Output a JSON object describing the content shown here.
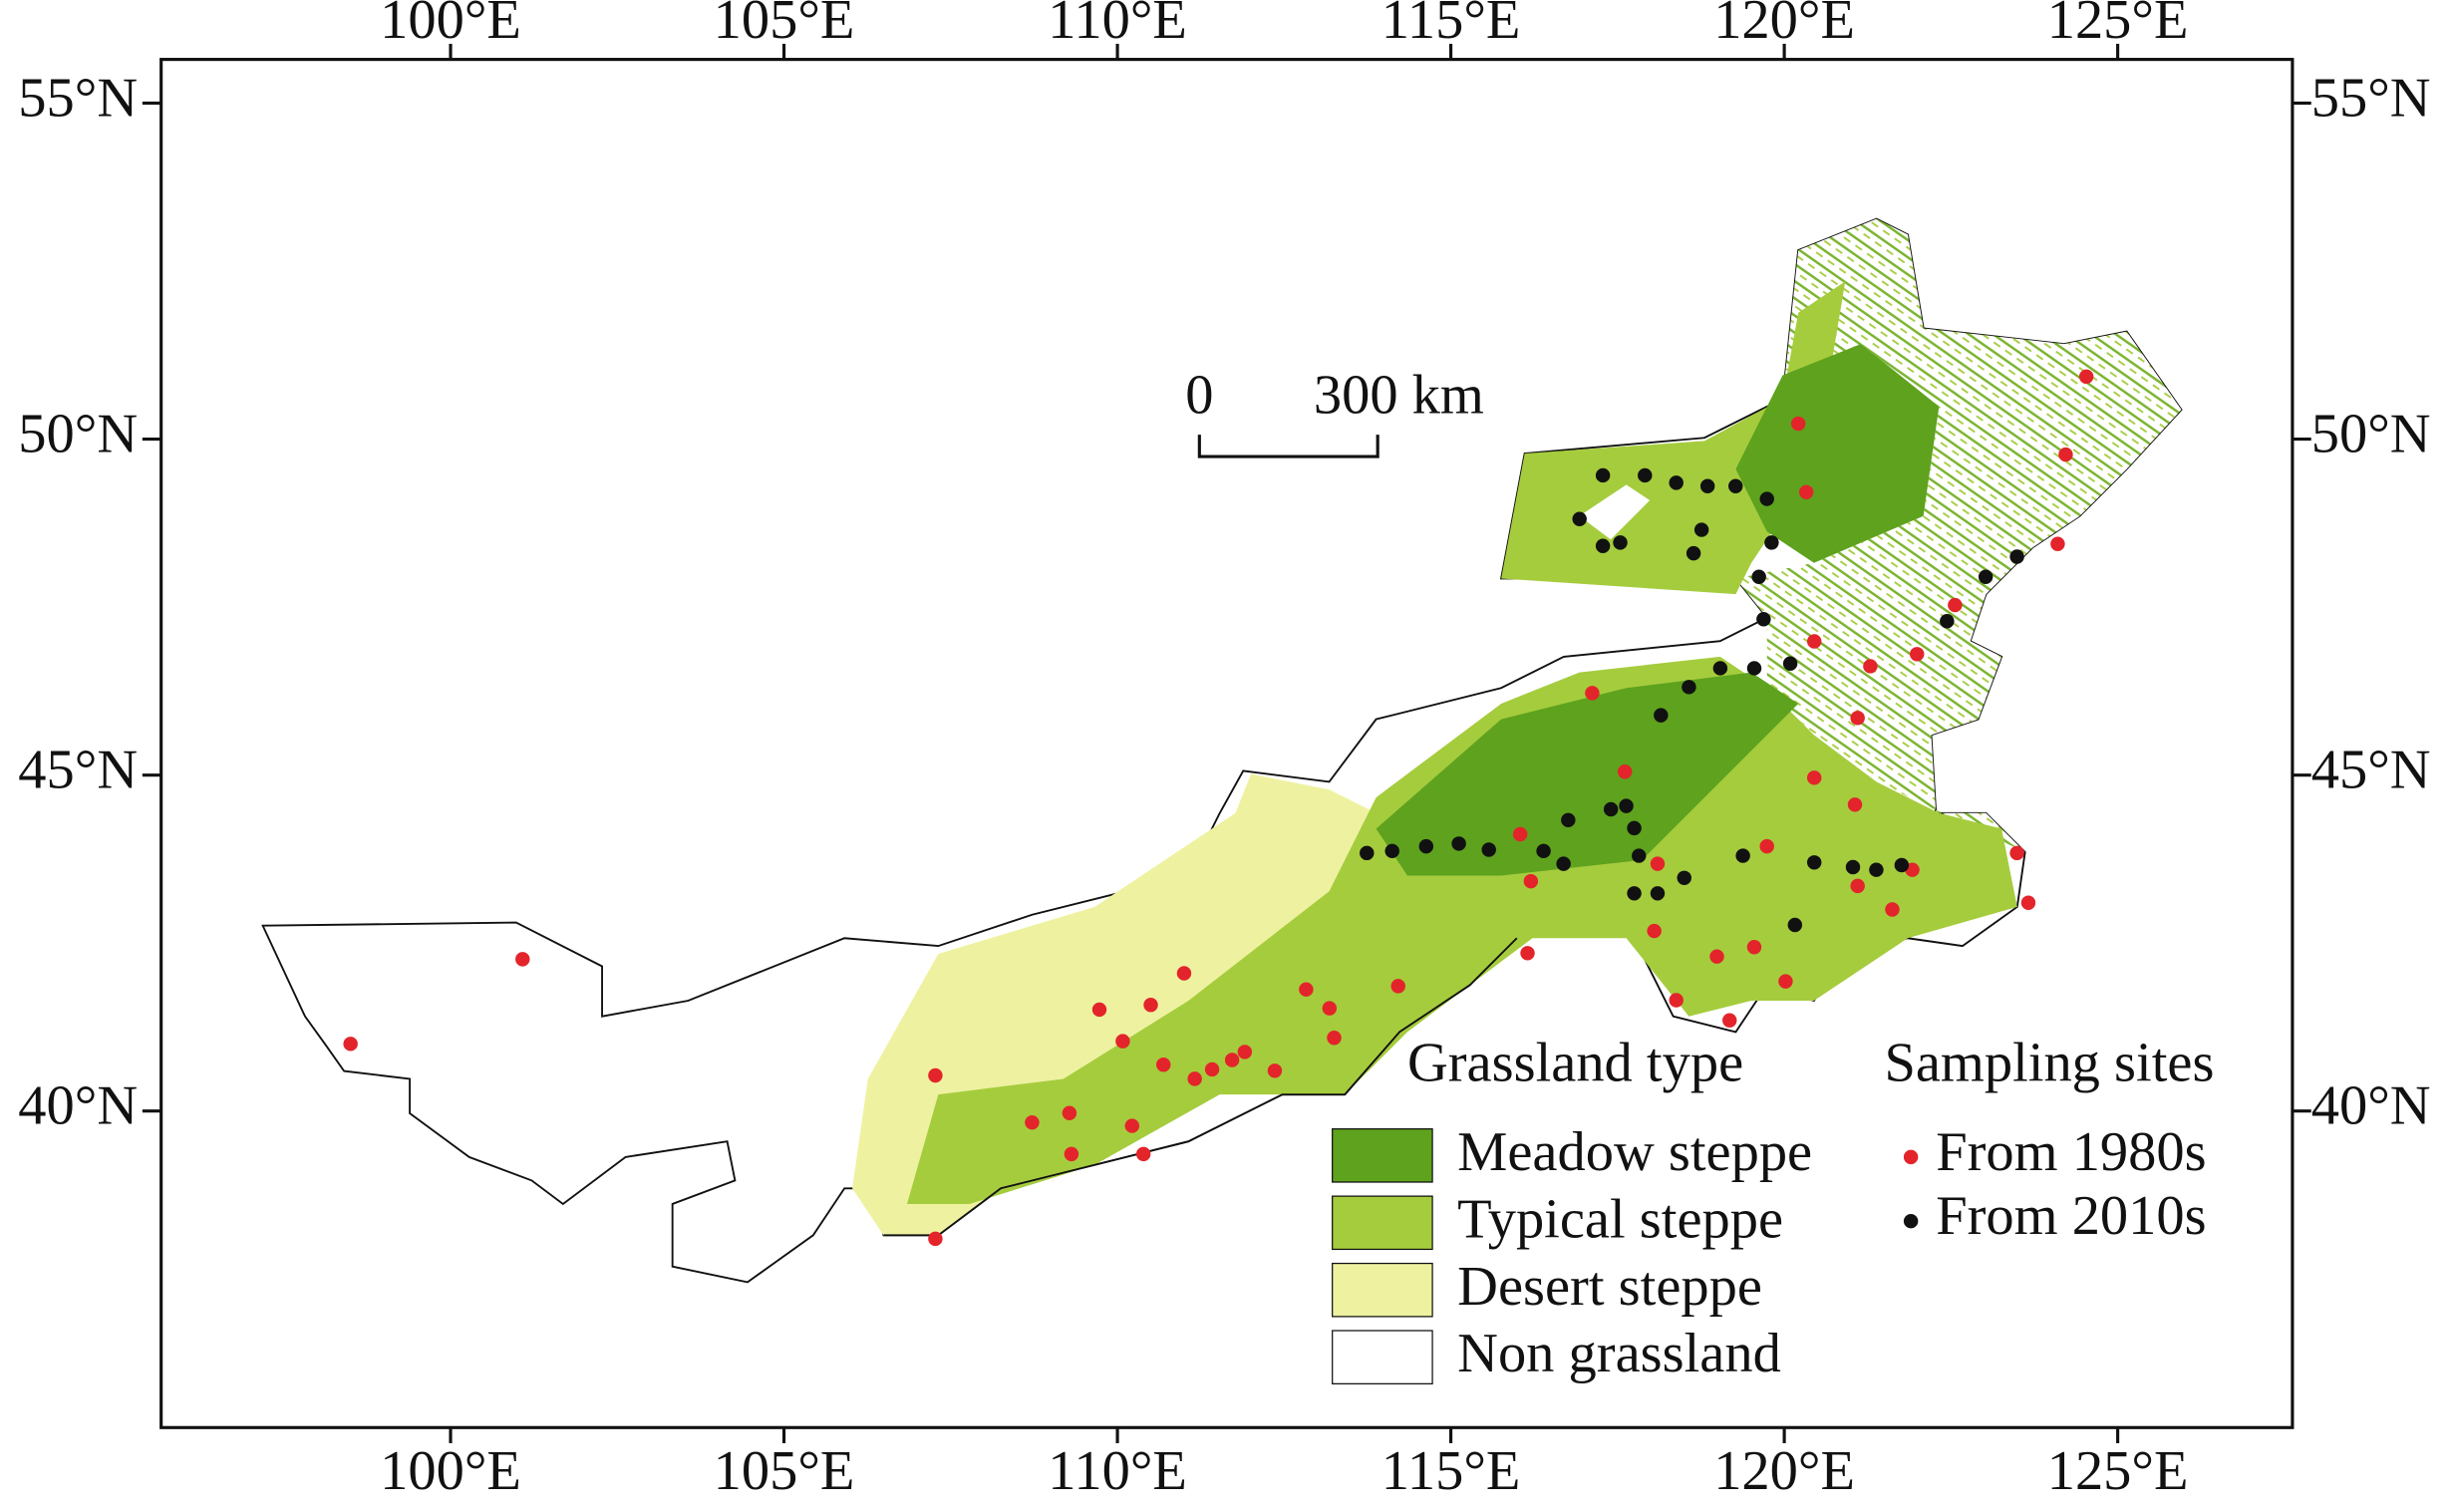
{
  "chart_data": {
    "type": "map",
    "xlim": [
      95.66,
      127.62
    ],
    "ylim": [
      35.29,
      55.65
    ],
    "xticks": [
      {
        "value": 100,
        "label": "100°E"
      },
      {
        "value": 105,
        "label": "105°E"
      },
      {
        "value": 110,
        "label": "110°E"
      },
      {
        "value": 115,
        "label": "115°E"
      },
      {
        "value": 120,
        "label": "120°E"
      },
      {
        "value": 125,
        "label": "125°E"
      }
    ],
    "yticks": [
      {
        "value": 40,
        "label": "40°N"
      },
      {
        "value": 45,
        "label": "45°N"
      },
      {
        "value": 50,
        "label": "50°N"
      },
      {
        "value": 55,
        "label": "55°N"
      }
    ],
    "scale_bar": {
      "labels": [
        "0",
        "300 km"
      ]
    },
    "legend": {
      "title": "Grassland type",
      "items": [
        {
          "name": "Meadow steppe",
          "color": "#5ea21e"
        },
        {
          "name": "Typical steppe",
          "color": "#a5cc3d"
        },
        {
          "name": "Desert steppe",
          "color": "#eef2a0"
        },
        {
          "name": "Non grassland",
          "color": "#ffffff"
        }
      ]
    },
    "sampling_sites": {
      "title": "Sampling sites",
      "series": [
        {
          "name": "From 1980s",
          "color": "#e3242b",
          "lon": [
            98.5,
            101.08,
            107.27,
            107.27,
            108.72,
            109.28,
            109.31,
            109.73,
            110.08,
            110.22,
            110.39,
            110.5,
            110.69,
            111.0,
            111.16,
            111.42,
            111.72,
            111.91,
            112.36,
            112.83,
            113.18,
            113.25,
            114.21,
            116.04,
            116.2,
            116.15,
            117.12,
            117.61,
            118.1,
            118.05,
            118.38,
            118.99,
            119.18,
            119.55,
            119.74,
            120.02,
            120.21,
            120.33,
            120.45,
            120.45,
            121.06,
            121.1,
            121.29,
            121.1,
            121.62,
            121.92,
            121.99,
            122.56,
            123.49,
            123.66,
            124.1,
            124.22,
            124.53
          ],
          "lat": [
            41.0,
            42.26,
            38.1,
            40.53,
            39.83,
            39.97,
            39.36,
            41.51,
            41.04,
            39.78,
            39.36,
            41.58,
            40.69,
            42.05,
            40.48,
            40.62,
            40.76,
            40.88,
            40.6,
            41.81,
            41.53,
            41.09,
            41.86,
            44.12,
            43.42,
            42.35,
            46.22,
            45.05,
            43.68,
            42.68,
            41.65,
            42.3,
            41.35,
            42.44,
            43.94,
            41.93,
            50.23,
            49.21,
            46.99,
            44.96,
            44.56,
            45.85,
            46.62,
            43.35,
            43.0,
            43.59,
            46.8,
            47.53,
            43.84,
            43.1,
            48.44,
            49.77,
            50.93
          ]
        },
        {
          "name": "From 2010s",
          "color": "#111111",
          "lon": [
            113.74,
            114.12,
            114.63,
            115.12,
            115.57,
            116.39,
            116.69,
            116.76,
            117.4,
            117.63,
            117.75,
            117.82,
            117.75,
            118.1,
            118.5,
            118.15,
            118.57,
            119.04,
            119.55,
            120.09,
            119.69,
            119.62,
            119.81,
            119.74,
            119.27,
            118.85,
            118.38,
            117.91,
            117.28,
            116.93,
            117.28,
            117.54,
            118.76,
            118.64,
            119.38,
            120.45,
            121.03,
            121.38,
            121.76,
            120.16,
            122.44,
            123.02,
            123.49
          ],
          "lat": [
            43.84,
            43.87,
            43.94,
            43.98,
            43.89,
            43.87,
            43.68,
            44.33,
            44.49,
            44.54,
            44.21,
            43.8,
            43.24,
            43.24,
            43.47,
            45.89,
            46.31,
            46.59,
            46.59,
            46.66,
            47.32,
            47.95,
            48.46,
            49.11,
            49.3,
            49.3,
            49.35,
            49.46,
            49.46,
            48.81,
            48.41,
            48.46,
            48.65,
            48.3,
            43.8,
            43.7,
            43.63,
            43.59,
            43.66,
            42.77,
            47.29,
            47.95,
            48.25
          ]
        }
      ]
    }
  }
}
